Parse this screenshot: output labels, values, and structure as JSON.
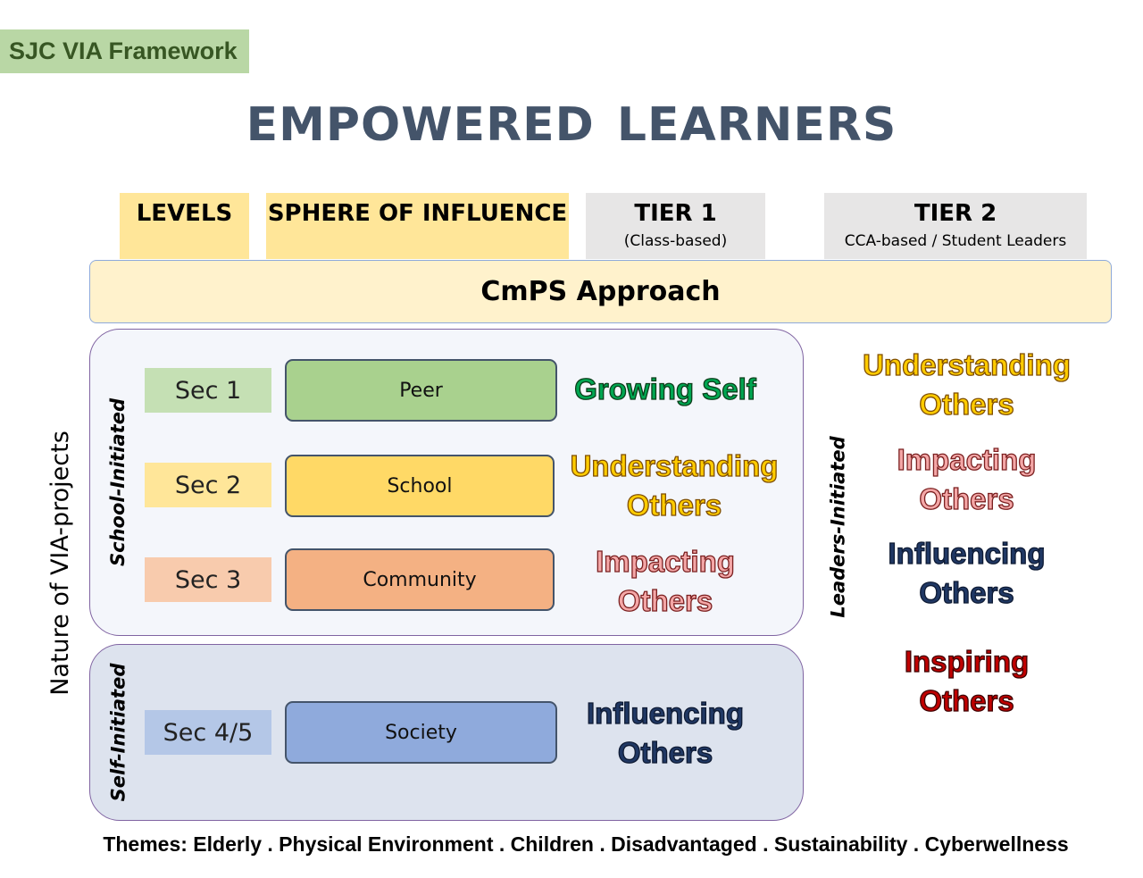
{
  "framework_tag": "SJC VIA Framework",
  "title": "EMPOWERED LEARNERS",
  "headers": {
    "levels": "LEVELS",
    "sphere": "SPHERE OF INFLUENCE",
    "tier1": {
      "title": "TIER 1",
      "sub": "(Class-based)"
    },
    "tier2": {
      "title": "TIER 2",
      "sub": "CCA-based / Student Leaders"
    }
  },
  "approach": "CmPS Approach",
  "side_labels": {
    "nature": "Nature of VIA-projects",
    "school_initiated": "School-Initiated",
    "self_initiated": "Self-Initiated",
    "leaders_initiated": "Leaders-Initiated"
  },
  "rows": [
    {
      "level": "Sec 1",
      "sphere": "Peer",
      "tier1": [
        "Growing Self"
      ]
    },
    {
      "level": "Sec 2",
      "sphere": "School",
      "tier1": [
        "Understanding",
        "Others"
      ]
    },
    {
      "level": "Sec 3",
      "sphere": "Community",
      "tier1": [
        "Impacting",
        "Others"
      ]
    },
    {
      "level": "Sec 4/5",
      "sphere": "Society",
      "tier1": [
        "Influencing",
        "Others"
      ]
    }
  ],
  "tier2": [
    [
      "Understanding",
      "Others"
    ],
    [
      "Impacting",
      "Others"
    ],
    [
      "Influencing",
      "Others"
    ],
    [
      "Inspiring",
      "Others"
    ]
  ],
  "themes": "Themes: Elderly . Physical Environment . Children . Disadvantaged . Sustainability . Cyberwellness",
  "colors": {
    "sec1_level": "#c5e0b4",
    "sec1_sphere": "#a9d18e",
    "sec2_level": "#ffe699",
    "sec2_sphere": "#ffd966",
    "sec3_level": "#f8cbad",
    "sec3_sphere": "#f4b183",
    "sec45_level": "#b4c7e7",
    "sec45_sphere": "#8faadc"
  }
}
